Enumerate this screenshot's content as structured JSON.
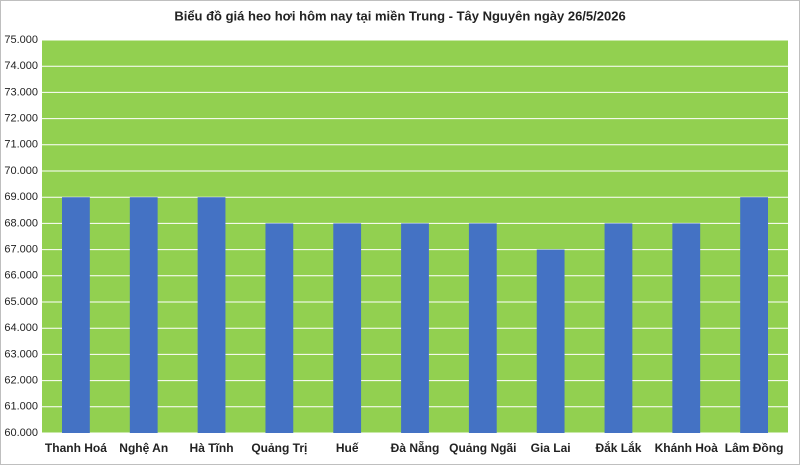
{
  "chart_data": {
    "type": "bar",
    "title": "Biểu đồ giá heo hơi hôm nay tại miền Trung - Tây Nguyên ngày 26/5/2026",
    "categories": [
      "Thanh Hoá",
      "Nghệ An",
      "Hà Tĩnh",
      "Quảng Trị",
      "Huế",
      "Đà Nẵng",
      "Quảng Ngãi",
      "Gia Lai",
      "Đắk Lắk",
      "Khánh Hoà",
      "Lâm Đồng"
    ],
    "values": [
      69000,
      69000,
      69000,
      68000,
      68000,
      68000,
      68000,
      67000,
      68000,
      68000,
      69000
    ],
    "color": "#4472c4",
    "background": "#92d050",
    "ylim": [
      60000,
      75000
    ],
    "yticks": [
      {
        "value": 60000,
        "label": "60.000"
      },
      {
        "value": 61000,
        "label": "61.000"
      },
      {
        "value": 62000,
        "label": "62.000"
      },
      {
        "value": 63000,
        "label": "63.000"
      },
      {
        "value": 64000,
        "label": "64.000"
      },
      {
        "value": 65000,
        "label": "65.000"
      },
      {
        "value": 66000,
        "label": "66.000"
      },
      {
        "value": 67000,
        "label": "67.000"
      },
      {
        "value": 68000,
        "label": "68.000"
      },
      {
        "value": 69000,
        "label": "69.000"
      },
      {
        "value": 70000,
        "label": "70.000"
      },
      {
        "value": 71000,
        "label": "71.000"
      },
      {
        "value": 72000,
        "label": "72.000"
      },
      {
        "value": 73000,
        "label": "73.000"
      },
      {
        "value": 74000,
        "label": "74.000"
      },
      {
        "value": 75000,
        "label": "75.000"
      }
    ],
    "grid": true
  }
}
